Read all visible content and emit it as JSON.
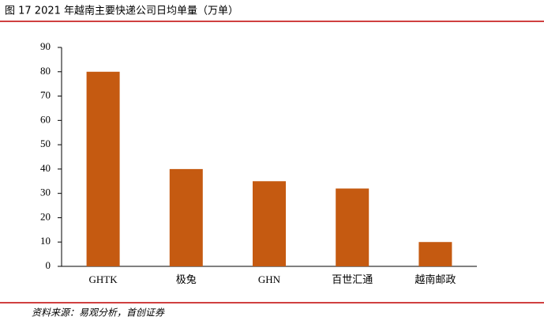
{
  "chart_data": {
    "type": "bar",
    "title": "图 17 2021 年越南主要快递公司日均单量（万单）",
    "categories": [
      "GHTK",
      "极兔",
      "GHN",
      "百世汇通",
      "越南邮政"
    ],
    "values": [
      80,
      40,
      35,
      32,
      10
    ],
    "color": "#c55a11",
    "ylim": [
      0,
      90
    ],
    "yticks": [
      0,
      10,
      20,
      30,
      40,
      50,
      60,
      70,
      80,
      90
    ],
    "source": "资料来源：易观分析，首创证券"
  }
}
